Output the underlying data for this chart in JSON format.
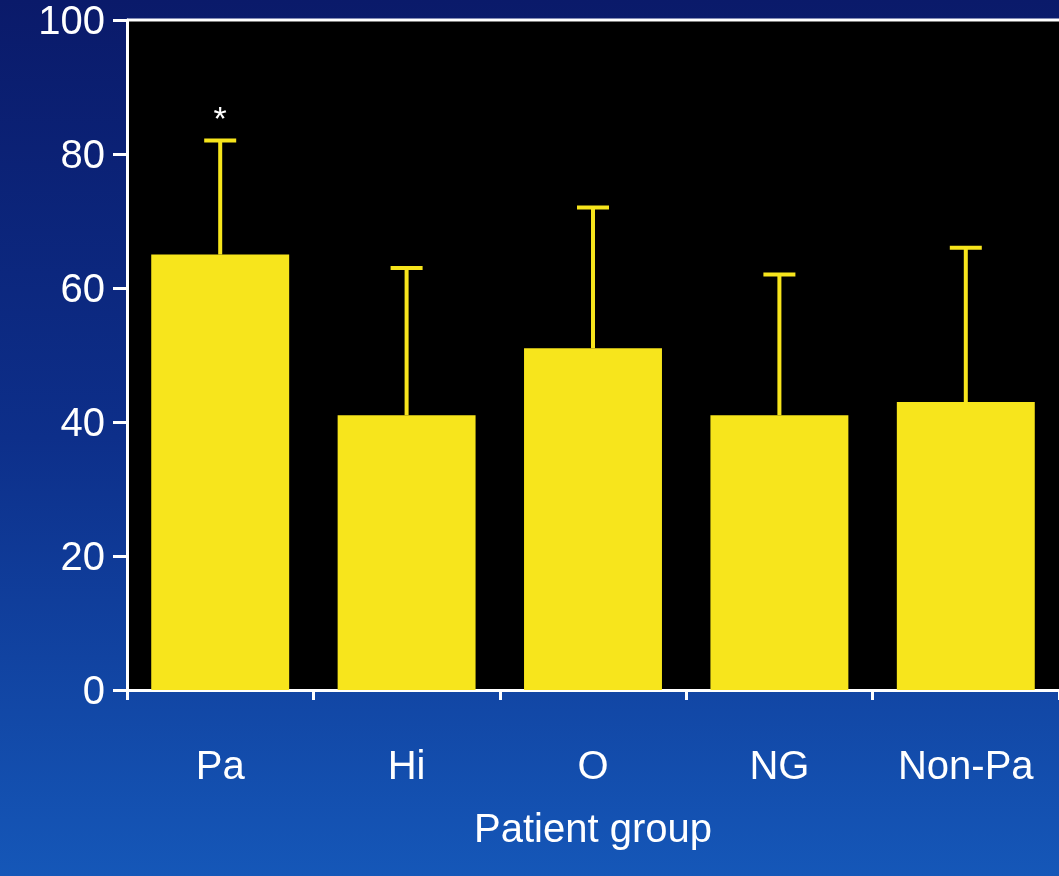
{
  "chart_data": {
    "type": "bar",
    "xlabel": "Patient group",
    "categories": [
      "Pa",
      "Hi",
      "O",
      "NG",
      "Non-Pa"
    ],
    "series": [
      {
        "color": "#f7e51c",
        "values": [
          65,
          41,
          51,
          41,
          43
        ],
        "errors": [
          [
            65,
            82
          ],
          [
            41,
            63
          ],
          [
            51,
            72
          ],
          [
            41,
            62
          ],
          [
            43,
            66
          ]
        ]
      }
    ],
    "ylim": [
      0,
      100
    ],
    "yticks": [
      0,
      20,
      40,
      60,
      80,
      100
    ],
    "grid": false,
    "annotations": [
      {
        "text": "*",
        "x": "Pa",
        "y": 82
      }
    ]
  }
}
